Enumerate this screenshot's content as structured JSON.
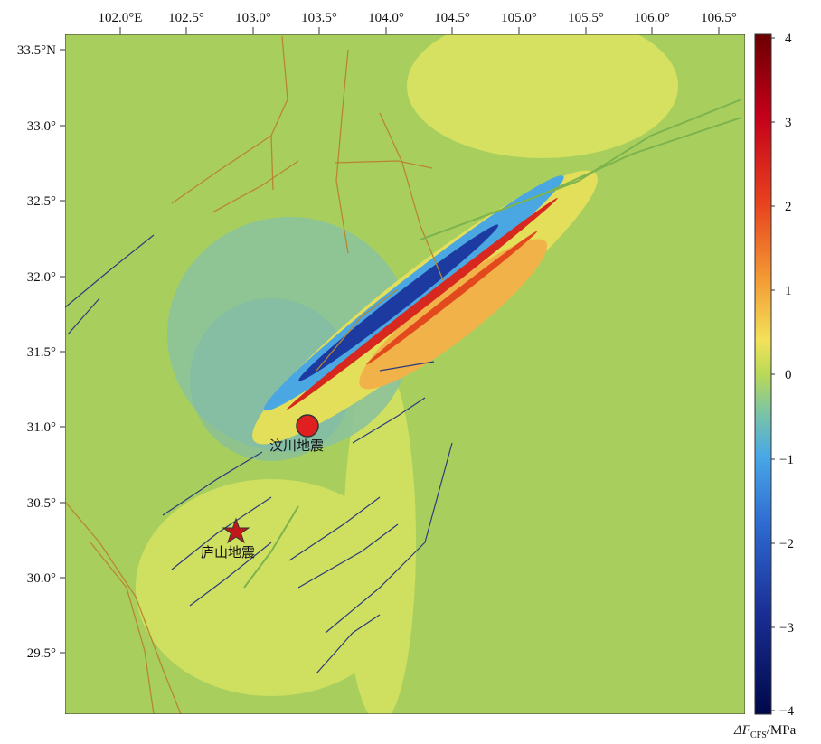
{
  "map": {
    "lon_ticks": [
      "102.0°E",
      "102.5°",
      "103.0°",
      "103.5°",
      "104.0°",
      "104.5°",
      "105.0°",
      "105.5°",
      "106.0°",
      "106.5°"
    ],
    "lat_ticks": [
      "33.5°N",
      "33.0°",
      "32.5°",
      "32.0°",
      "31.5°",
      "31.0°",
      "30.5°",
      "30.0°",
      "29.5°"
    ],
    "places": {
      "wenchuan": "汶川地震",
      "lushan": "庐山地震"
    },
    "colors": {
      "background": "#9ecb5a",
      "positive_max": "#7a0000",
      "negative_max": "#000a55",
      "zero": "#b9d957"
    }
  },
  "colorbar": {
    "ticks": [
      "4",
      "3",
      "2",
      "1",
      "0",
      "−1",
      "−2",
      "−3",
      "−4"
    ],
    "unit_prefix": "ΔF",
    "unit_sub": "CFS",
    "unit_suffix": "/MPa"
  }
}
